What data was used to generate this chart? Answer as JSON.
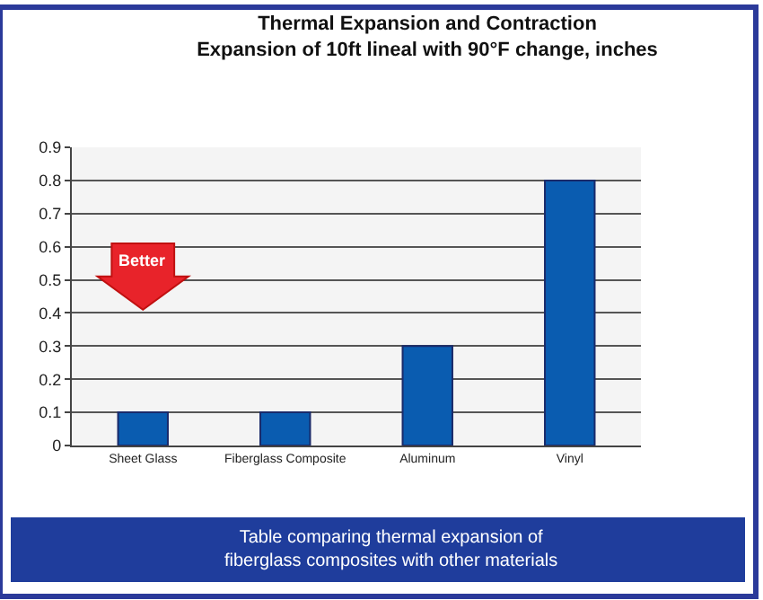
{
  "chart_data": {
    "type": "bar",
    "title": "Thermal Expansion and Contraction",
    "subtitle": "Expansion of 10ft lineal with 90°F change, inches",
    "categories": [
      "Sheet Glass",
      "Fiberglass Composite",
      "Aluminum",
      "Vinyl"
    ],
    "values": [
      0.1,
      0.1,
      0.3,
      0.8
    ],
    "color": "#0a5cb0",
    "ylim": [
      0,
      0.9
    ],
    "yticks": [
      0,
      0.1,
      0.2,
      0.3,
      0.4,
      0.5,
      0.6,
      0.7,
      0.8,
      0.9
    ],
    "grid": "y",
    "annotations": [
      "Better",
      "Table comparing thermal expansion of fiberglass composites with other materials"
    ]
  }
}
